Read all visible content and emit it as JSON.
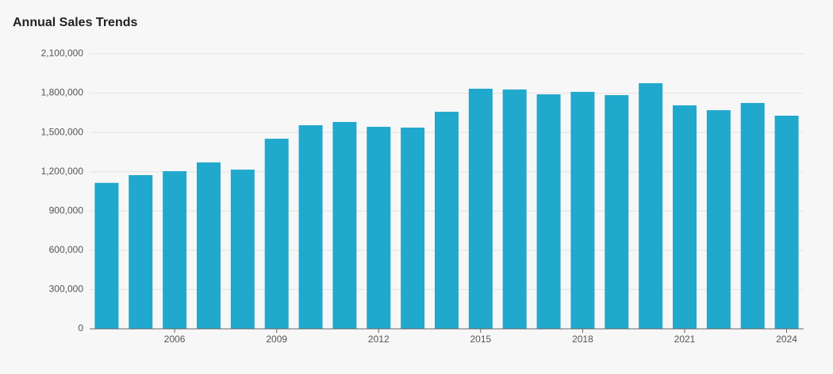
{
  "chart_data": {
    "type": "bar",
    "title": "Annual Sales Trends",
    "categories": [
      null,
      null,
      2006,
      null,
      null,
      2009,
      null,
      null,
      2012,
      null,
      null,
      2015,
      null,
      null,
      2018,
      null,
      null,
      2021,
      null,
      null,
      2024
    ],
    "values": [
      1115000,
      1174000,
      1204000,
      1271000,
      1216000,
      1452000,
      1555000,
      1580000,
      1543000,
      1537000,
      1658000,
      1834000,
      1828000,
      1791000,
      1810000,
      1785000,
      1876000,
      1707000,
      1670000,
      1725000,
      1628000
    ],
    "color": "#21a8cd",
    "ylim": [
      0,
      2100000
    ],
    "yticks": [
      0,
      {
        "value": 300000,
        "label": "300,000"
      },
      {
        "value": 600000,
        "label": "600,000"
      },
      {
        "value": 900000,
        "label": "900,000"
      },
      {
        "value": 1200000,
        "label": "1,200,000"
      },
      {
        "value": 1500000,
        "label": "1,500,000"
      },
      {
        "value": 1800000,
        "label": "1,800,000"
      },
      {
        "value": 2100000,
        "label": "2,100,000"
      }
    ],
    "grid": true
  }
}
